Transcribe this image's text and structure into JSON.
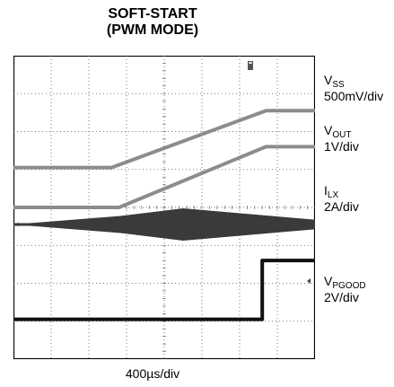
{
  "chart_data": {
    "type": "line",
    "title": "SOFT-START",
    "subtitle": "(PWM MODE)",
    "figure_id": "toc15",
    "xlabel": "400µs/div",
    "grid": true,
    "x_divisions": 8,
    "y_divisions": 8,
    "series": [
      {
        "main": "V",
        "sub": "SS",
        "scale": "500mV/div",
        "color": "#8c8c8c",
        "x": [
          0,
          2.6,
          6.7,
          8
        ],
        "y": [
          5.05,
          5.05,
          6.55,
          6.55
        ]
      },
      {
        "main": "V",
        "sub": "OUT",
        "scale": "1V/div",
        "color": "#8c8c8c",
        "x": [
          0,
          2.8,
          6.7,
          8
        ],
        "y": [
          4.0,
          4.0,
          5.6,
          5.6
        ]
      },
      {
        "main": "I",
        "sub": "LX",
        "scale": "2A/div",
        "color": "#3a3a3a",
        "x": [
          0,
          2.85,
          4.5,
          8
        ],
        "y": [
          3.55,
          3.55,
          3.55,
          3.55
        ],
        "ripple_pp": [
          0,
          0.45,
          0.85,
          0.25
        ]
      },
      {
        "main": "V",
        "sub": "PGOOD",
        "scale": "2V/div",
        "color": "#111111",
        "x": [
          0,
          6.6,
          6.6,
          8
        ],
        "y": [
          1.05,
          1.05,
          2.6,
          2.6
        ]
      }
    ]
  }
}
